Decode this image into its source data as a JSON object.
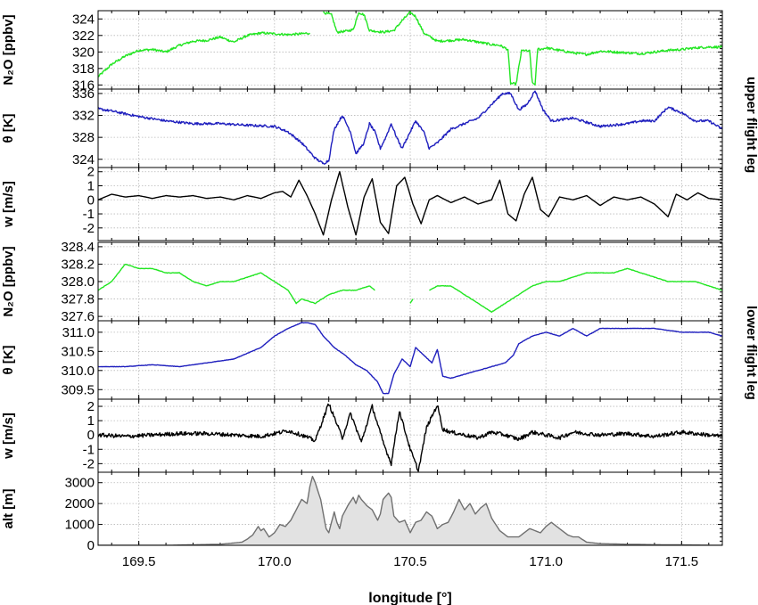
{
  "figure": {
    "xlabel": "longitude [°]",
    "upper_leg_label": "upper flight leg",
    "lower_leg_label": "lower flight leg"
  },
  "chart_data": [
    {
      "id": "upper_n2o",
      "type": "line",
      "ylabel": "N₂O [ppbv]",
      "xlim": [
        169.35,
        171.65
      ],
      "ylim": [
        315.5,
        325
      ],
      "yticks": [
        316,
        318,
        320,
        322,
        324
      ],
      "color": "#22e622",
      "noise": 0.25,
      "series": [
        {
          "x": [
            169.35,
            169.4,
            169.45,
            169.5,
            169.55,
            169.6,
            169.65,
            169.7,
            169.75,
            169.8,
            169.85,
            169.9,
            169.95,
            170.0,
            170.05,
            170.1,
            170.13
          ],
          "y": [
            317.0,
            318.5,
            319.5,
            320.2,
            320.3,
            320.0,
            320.8,
            321.3,
            321.4,
            321.8,
            321.2,
            322.0,
            322.3,
            322.2,
            322.1,
            322.2,
            322.3
          ]
        },
        {
          "x": [
            170.18,
            170.21,
            170.23,
            170.26,
            170.29,
            170.31,
            170.33,
            170.35,
            170.4,
            170.44,
            170.47,
            170.5,
            170.52,
            170.55,
            170.6,
            170.65,
            170.7,
            170.75,
            170.8,
            170.83,
            170.86,
            170.87,
            170.89,
            170.91,
            170.92,
            170.93,
            170.94,
            170.95,
            170.96,
            170.97,
            170.98,
            171.0,
            171.05,
            171.1,
            171.15,
            171.2,
            171.25,
            171.3,
            171.35,
            171.4,
            171.45,
            171.5,
            171.55,
            171.6,
            171.65
          ],
          "y": [
            324.8,
            324.5,
            322.4,
            322.5,
            322.7,
            324.8,
            324.5,
            322.6,
            322.4,
            322.6,
            323.8,
            324.8,
            324.3,
            322.3,
            321.3,
            321.4,
            321.5,
            321.2,
            320.9,
            320.8,
            320.3,
            316.2,
            316.1,
            320.1,
            320.2,
            320.1,
            320.1,
            316.2,
            316.1,
            320.4,
            320.3,
            320.5,
            320.2,
            319.9,
            319.7,
            320.1,
            320.0,
            319.9,
            319.8,
            320.0,
            320.2,
            320.3,
            320.5,
            320.6,
            320.6
          ]
        }
      ]
    },
    {
      "id": "upper_theta",
      "type": "line",
      "ylabel": "θ [K]",
      "xlim": [
        169.35,
        171.65
      ],
      "ylim": [
        322.5,
        336.8
      ],
      "yticks": [
        324,
        328,
        332,
        336
      ],
      "color": "#1f1fbe",
      "noise": 0.25,
      "series": [
        {
          "x": [
            169.35,
            169.4,
            169.5,
            169.6,
            169.7,
            169.8,
            169.9,
            170.0,
            170.05,
            170.1,
            170.15,
            170.18,
            170.2,
            170.22,
            170.25,
            170.28,
            170.3,
            170.33,
            170.35,
            170.37,
            170.39,
            170.41,
            170.43,
            170.45,
            170.47,
            170.49,
            170.52,
            170.55,
            170.57,
            170.6,
            170.65,
            170.7,
            170.75,
            170.8,
            170.84,
            170.87,
            170.9,
            170.93,
            170.96,
            170.99,
            171.02,
            171.1,
            171.2,
            171.3,
            171.35,
            171.4,
            171.45,
            171.5,
            171.55,
            171.6,
            171.65
          ],
          "y": [
            333.2,
            332.8,
            331.8,
            331.0,
            330.5,
            330.5,
            330.2,
            330.0,
            329.0,
            327.0,
            324.2,
            323.2,
            323.8,
            329.5,
            332.0,
            329.0,
            325.0,
            327.0,
            330.5,
            329.0,
            326.0,
            328.0,
            330.5,
            328.0,
            326.0,
            328.0,
            331.0,
            329.0,
            326.0,
            327.0,
            329.5,
            330.5,
            331.5,
            334.0,
            336.0,
            336.0,
            333.0,
            334.0,
            336.5,
            333.0,
            331.0,
            331.5,
            330.0,
            330.5,
            331.0,
            331.0,
            333.5,
            332.5,
            331.0,
            331.0,
            329.5
          ]
        }
      ]
    },
    {
      "id": "upper_w",
      "type": "line",
      "ylabel": "w [m/s]",
      "xlim": [
        169.35,
        171.65
      ],
      "ylim": [
        -2.9,
        2.3
      ],
      "yticks": [
        -2,
        -1,
        0,
        1,
        2
      ],
      "color": "#000000",
      "noise": 0.0,
      "series": [
        {
          "x": [
            169.35,
            169.4,
            169.45,
            169.5,
            169.55,
            169.6,
            169.65,
            169.7,
            169.75,
            169.8,
            169.85,
            169.9,
            169.95,
            170.0,
            170.03,
            170.06,
            170.09,
            170.12,
            170.15,
            170.18,
            170.21,
            170.24,
            170.27,
            170.3,
            170.33,
            170.36,
            170.39,
            170.42,
            170.45,
            170.48,
            170.51,
            170.54,
            170.57,
            170.6,
            170.65,
            170.7,
            170.75,
            170.8,
            170.83,
            170.86,
            170.89,
            170.92,
            170.95,
            170.98,
            171.01,
            171.05,
            171.1,
            171.15,
            171.2,
            171.25,
            171.3,
            171.35,
            171.4,
            171.45,
            171.48,
            171.52,
            171.56,
            171.6,
            171.65
          ],
          "y": [
            0.0,
            0.4,
            0.2,
            0.3,
            0.1,
            0.3,
            0.2,
            0.3,
            0.1,
            0.2,
            0.0,
            0.3,
            0.1,
            0.5,
            0.6,
            0.2,
            1.4,
            0.3,
            -1.0,
            -2.5,
            0.0,
            2.0,
            -0.5,
            -2.5,
            0.2,
            1.5,
            -1.6,
            -2.4,
            1.0,
            1.6,
            -0.3,
            -1.7,
            0.0,
            0.3,
            -0.2,
            0.2,
            -0.3,
            0.0,
            1.4,
            -1.0,
            -1.5,
            0.4,
            1.6,
            -0.7,
            -1.2,
            0.2,
            0.0,
            0.3,
            -0.4,
            0.2,
            0.0,
            0.2,
            -0.3,
            -1.2,
            0.4,
            0.0,
            0.5,
            0.1,
            0.0
          ]
        }
      ]
    },
    {
      "id": "lower_n2o",
      "type": "line",
      "ylabel": "N₂O [ppbv]",
      "xlim": [
        169.35,
        171.65
      ],
      "ylim": [
        327.55,
        328.45
      ],
      "yticks": [
        327.6,
        327.8,
        328.0,
        328.2,
        328.4
      ],
      "color": "#22e622",
      "noise": 0.05,
      "series": [
        {
          "x": [
            169.35,
            169.4,
            169.45,
            169.5,
            169.55,
            169.6,
            169.65,
            169.7,
            169.75,
            169.8,
            169.85,
            169.9,
            169.95,
            170.0,
            170.05,
            170.08,
            170.1,
            170.15,
            170.2,
            170.25,
            170.3,
            170.35,
            170.37
          ],
          "y": [
            327.9,
            328.0,
            328.2,
            328.15,
            328.15,
            328.1,
            328.1,
            328.0,
            327.95,
            328.0,
            328.0,
            328.05,
            328.1,
            328.0,
            327.9,
            327.75,
            327.8,
            327.75,
            327.85,
            327.9,
            327.9,
            327.95,
            327.9
          ]
        },
        {
          "x": [
            170.5,
            170.51
          ],
          "y": [
            327.75,
            327.8
          ]
        },
        {
          "x": [
            170.57,
            170.6,
            170.65,
            170.7,
            170.75,
            170.8,
            170.85,
            170.9,
            170.95,
            171.0,
            171.05,
            171.1,
            171.15,
            171.2,
            171.25,
            171.3,
            171.35,
            171.4,
            171.45,
            171.5,
            171.55,
            171.6,
            171.65
          ],
          "y": [
            327.9,
            327.95,
            327.95,
            327.85,
            327.75,
            327.65,
            327.75,
            327.85,
            327.95,
            328.0,
            328.0,
            328.05,
            328.1,
            328.1,
            328.1,
            328.15,
            328.1,
            328.05,
            328.0,
            328.0,
            328.0,
            327.95,
            327.9
          ]
        }
      ]
    },
    {
      "id": "lower_theta",
      "type": "line",
      "ylabel": "θ [K]",
      "xlim": [
        169.35,
        171.65
      ],
      "ylim": [
        309.25,
        311.3
      ],
      "yticks": [
        309.5,
        310.0,
        310.5,
        311.0
      ],
      "color": "#1f1fbe",
      "noise": 0.04,
      "series": [
        {
          "x": [
            169.35,
            169.45,
            169.55,
            169.65,
            169.75,
            169.85,
            169.95,
            170.0,
            170.05,
            170.1,
            170.12,
            170.15,
            170.18,
            170.22,
            170.26,
            170.3,
            170.34,
            170.38,
            170.4,
            170.42,
            170.44,
            170.47,
            170.5,
            170.52,
            170.55,
            170.58,
            170.6,
            170.62,
            170.65,
            170.7,
            170.75,
            170.8,
            170.85,
            170.88,
            170.9,
            170.95,
            171.0,
            171.05,
            171.1,
            171.15,
            171.2,
            171.3,
            171.4,
            171.5,
            171.6,
            171.65
          ],
          "y": [
            310.1,
            310.1,
            310.15,
            310.1,
            310.2,
            310.3,
            310.6,
            310.9,
            311.1,
            311.25,
            311.25,
            311.2,
            310.9,
            310.6,
            310.4,
            310.15,
            310.0,
            309.7,
            309.4,
            309.4,
            309.9,
            310.3,
            310.1,
            310.6,
            310.4,
            310.2,
            310.55,
            309.85,
            309.8,
            309.9,
            310.0,
            310.1,
            310.2,
            310.4,
            310.7,
            310.9,
            311.0,
            310.9,
            311.1,
            310.9,
            311.1,
            311.1,
            311.1,
            311.0,
            311.0,
            310.9
          ]
        }
      ]
    },
    {
      "id": "lower_w",
      "type": "line",
      "ylabel": "w [m/s]",
      "xlim": [
        169.35,
        171.65
      ],
      "ylim": [
        -2.6,
        2.5
      ],
      "yticks": [
        -2,
        -1,
        0,
        1,
        2
      ],
      "color": "#000000",
      "noise": 0.45,
      "series": [
        {
          "x": [
            169.35,
            169.45,
            169.55,
            169.65,
            169.75,
            169.85,
            169.95,
            170.0,
            170.05,
            170.1,
            170.15,
            170.2,
            170.25,
            170.28,
            170.32,
            170.36,
            170.4,
            170.43,
            170.46,
            170.5,
            170.53,
            170.56,
            170.6,
            170.62,
            170.65,
            170.7,
            170.75,
            170.8,
            170.85,
            170.9,
            170.95,
            171.0,
            171.05,
            171.1,
            171.2,
            171.3,
            171.4,
            171.5,
            171.6,
            171.65
          ],
          "y": [
            0.0,
            -0.1,
            0.0,
            0.1,
            0.1,
            0.0,
            -0.1,
            0.1,
            0.3,
            0.0,
            -0.4,
            2.2,
            -0.2,
            1.5,
            -0.5,
            2.0,
            -0.5,
            -2.0,
            1.7,
            -1.0,
            -2.5,
            0.5,
            2.1,
            0.4,
            0.2,
            0.0,
            -0.2,
            0.2,
            0.0,
            -0.3,
            0.2,
            0.0,
            -0.2,
            0.2,
            0.0,
            0.1,
            -0.1,
            0.2,
            0.0,
            -0.1
          ]
        }
      ]
    },
    {
      "id": "alt",
      "type": "area",
      "ylabel": "alt [m]",
      "xlim": [
        169.35,
        171.65
      ],
      "ylim": [
        0,
        3500
      ],
      "yticks": [
        0,
        1000,
        2000,
        3000
      ],
      "color": "#707070",
      "fill": "#e2e2e2",
      "noise": 0.0,
      "series": [
        {
          "x": [
            169.35,
            169.6,
            169.8,
            169.88,
            169.9,
            169.92,
            169.94,
            169.95,
            169.96,
            169.98,
            170.0,
            170.02,
            170.04,
            170.06,
            170.08,
            170.1,
            170.12,
            170.13,
            170.14,
            170.15,
            170.17,
            170.19,
            170.2,
            170.22,
            170.23,
            170.24,
            170.25,
            170.27,
            170.29,
            170.3,
            170.31,
            170.32,
            170.34,
            170.36,
            170.38,
            170.39,
            170.4,
            170.42,
            170.43,
            170.44,
            170.46,
            170.48,
            170.5,
            170.52,
            170.54,
            170.56,
            170.58,
            170.6,
            170.62,
            170.64,
            170.66,
            170.68,
            170.7,
            170.72,
            170.74,
            170.76,
            170.78,
            170.8,
            170.83,
            170.86,
            170.9,
            170.94,
            170.96,
            170.98,
            171.0,
            171.02,
            171.04,
            171.06,
            171.08,
            171.1,
            171.12,
            171.15,
            171.2,
            171.3,
            171.4,
            171.5,
            171.65
          ],
          "y": [
            0,
            0,
            50,
            150,
            300,
            500,
            900,
            700,
            800,
            400,
            600,
            1000,
            900,
            1200,
            1700,
            2200,
            2000,
            2800,
            3300,
            3000,
            2200,
            800,
            600,
            1600,
            1100,
            800,
            1400,
            1900,
            2300,
            2000,
            2400,
            2200,
            1900,
            1700,
            1200,
            1500,
            2200,
            2500,
            2300,
            1400,
            1100,
            1200,
            600,
            1100,
            1200,
            1600,
            1400,
            800,
            1000,
            1100,
            1600,
            2200,
            1700,
            2000,
            1500,
            1800,
            2000,
            1300,
            700,
            400,
            400,
            800,
            700,
            600,
            900,
            1100,
            900,
            700,
            500,
            400,
            400,
            150,
            80,
            50,
            30,
            20,
            0
          ]
        }
      ]
    }
  ],
  "x_axis": {
    "xlim": [
      169.35,
      171.65
    ],
    "ticks": [
      169.5,
      170.0,
      170.5,
      171.0,
      171.5
    ],
    "tick_labels": [
      "169.5",
      "170.0",
      "170.5",
      "171.0",
      "171.5"
    ]
  }
}
